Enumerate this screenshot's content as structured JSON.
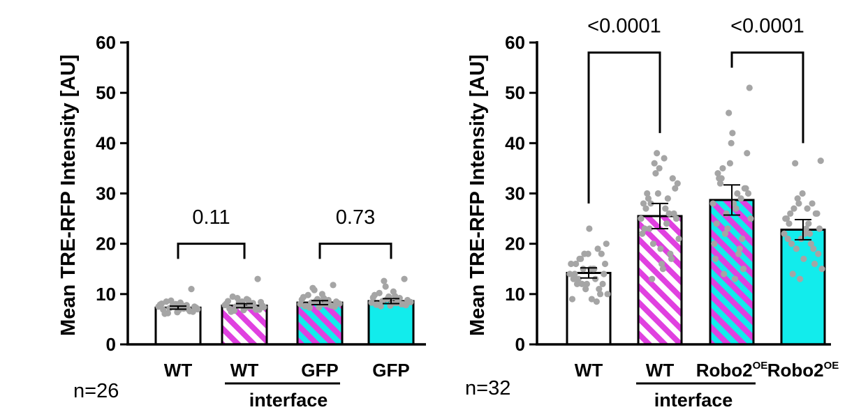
{
  "colors": {
    "magenta": "#e040e0",
    "cyan": "#12ecec",
    "white": "#ffffff",
    "dot": "#a5a5a5",
    "ink": "#000000"
  },
  "chart_data": [
    {
      "type": "bar",
      "ylabel": "Mean TRE-RFP Intensity [AU]",
      "ylim": [
        0,
        60
      ],
      "yticks": [
        "0",
        "10",
        "20",
        "30",
        "40",
        "50",
        "60"
      ],
      "n_label": "n=26",
      "group_label": "interface",
      "categories": [
        {
          "label": "WT",
          "sup": "",
          "fill": "white",
          "value": 7.3,
          "err": 0.3,
          "points": [
            7.5,
            8.0,
            6.5,
            7.2,
            7.8,
            6.9,
            8.3,
            7.0,
            7.6,
            11.0,
            6.2,
            7.4,
            8.1,
            6.8,
            7.3,
            7.7,
            6.6,
            8.5,
            7.1,
            7.9,
            6.4,
            7.5,
            8.7,
            7.0,
            6.1,
            7.8
          ]
        },
        {
          "label": "WT",
          "sup": "",
          "fill": "white-magenta",
          "value": 7.7,
          "err": 0.4,
          "points": [
            7.8,
            8.5,
            6.9,
            7.5,
            8.2,
            7.1,
            9.0,
            7.4,
            8.0,
            13.0,
            6.7,
            7.9,
            8.6,
            7.2,
            7.7,
            8.3,
            6.9,
            9.5,
            7.5,
            8.1,
            6.8,
            8.4,
            9.2,
            7.3,
            6.5,
            8.8
          ]
        },
        {
          "label": "GFP",
          "sup": "",
          "fill": "cyan-magenta",
          "value": 8.3,
          "err": 0.4,
          "points": [
            8.0,
            9.0,
            7.5,
            8.3,
            8.8,
            7.6,
            10.0,
            8.1,
            8.6,
            11.8,
            7.3,
            8.4,
            9.4,
            7.9,
            8.2,
            10.8,
            7.7,
            9.8,
            8.0,
            8.9,
            7.4,
            8.5,
            11.2,
            7.8,
            7.6,
            9.2
          ]
        },
        {
          "label": "GFP",
          "sup": "",
          "fill": "cyan",
          "value": 8.6,
          "err": 0.5,
          "points": [
            8.3,
            9.5,
            7.8,
            8.6,
            9.2,
            7.9,
            10.5,
            8.4,
            9.0,
            13.0,
            7.6,
            8.7,
            9.8,
            8.1,
            8.5,
            11.5,
            8.0,
            10.2,
            8.2,
            9.3,
            7.7,
            8.8,
            12.6,
            8.0,
            7.9,
            9.6
          ]
        }
      ],
      "comparisons": [
        {
          "from": 0,
          "to": 1,
          "label": "0.11",
          "y_data": 20,
          "y_low": 17,
          "y_high": 17,
          "text_y": 24
        },
        {
          "from": 2,
          "to": 3,
          "label": "0.73",
          "y_data": 20,
          "y_low": 17,
          "y_high": 17,
          "text_y": 24
        }
      ]
    },
    {
      "type": "bar",
      "ylabel": "Mean TRE-RFP Intensity [AU]",
      "ylim": [
        0,
        60
      ],
      "yticks": [
        "0",
        "10",
        "20",
        "30",
        "40",
        "50",
        "60"
      ],
      "n_label": "n=32",
      "group_label": "interface",
      "categories": [
        {
          "label": "WT",
          "sup": "",
          "fill": "white",
          "value": 14.2,
          "err": 1.0,
          "points": [
            14,
            16,
            12,
            18,
            15,
            10,
            20,
            13,
            17,
            11,
            9,
            19,
            14,
            16,
            12,
            15,
            23,
            13,
            18,
            10,
            14,
            17,
            12,
            15,
            11,
            16,
            9,
            13,
            18,
            15,
            8.5,
            12
          ]
        },
        {
          "label": "WT",
          "sup": "",
          "fill": "white-magenta",
          "value": 25.5,
          "err": 2.5,
          "points": [
            25,
            30,
            20,
            35,
            27,
            17,
            32,
            23,
            28,
            38,
            15,
            26,
            31,
            22,
            29,
            36,
            19,
            24,
            33,
            21,
            27,
            13,
            30,
            37,
            18,
            25,
            28,
            23,
            34,
            16,
            29,
            26
          ]
        },
        {
          "label": "Robo2",
          "sup": "OE",
          "fill": "cyan-magenta",
          "value": 28.7,
          "err": 3.0,
          "points": [
            28,
            33,
            22,
            40,
            30,
            15,
            51,
            24,
            35,
            46,
            13,
            29,
            38,
            20,
            32,
            26,
            42,
            18,
            31,
            25,
            34,
            14,
            36,
            27,
            21,
            30,
            17,
            33,
            23,
            28,
            19,
            31
          ]
        },
        {
          "label": "Robo2",
          "sup": "OE",
          "fill": "cyan",
          "value": 22.8,
          "err": 2.0,
          "points": [
            22,
            26,
            19,
            30,
            24,
            16,
            36.5,
            21,
            27,
            13,
            23,
            28,
            18,
            25,
            20,
            29,
            17,
            22,
            26,
            15,
            24,
            36,
            21,
            27,
            19,
            23,
            25,
            14,
            28,
            22,
            20,
            26
          ]
        }
      ],
      "comparisons": [
        {
          "from": 0,
          "to": 1,
          "label": "<0.0001",
          "y_data": 58,
          "y_low": 28,
          "y_high": 42,
          "text_y": 62
        },
        {
          "from": 2,
          "to": 3,
          "label": "<0.0001",
          "y_data": 58,
          "y_low": 55,
          "y_high": 40,
          "text_y": 62
        }
      ]
    }
  ]
}
